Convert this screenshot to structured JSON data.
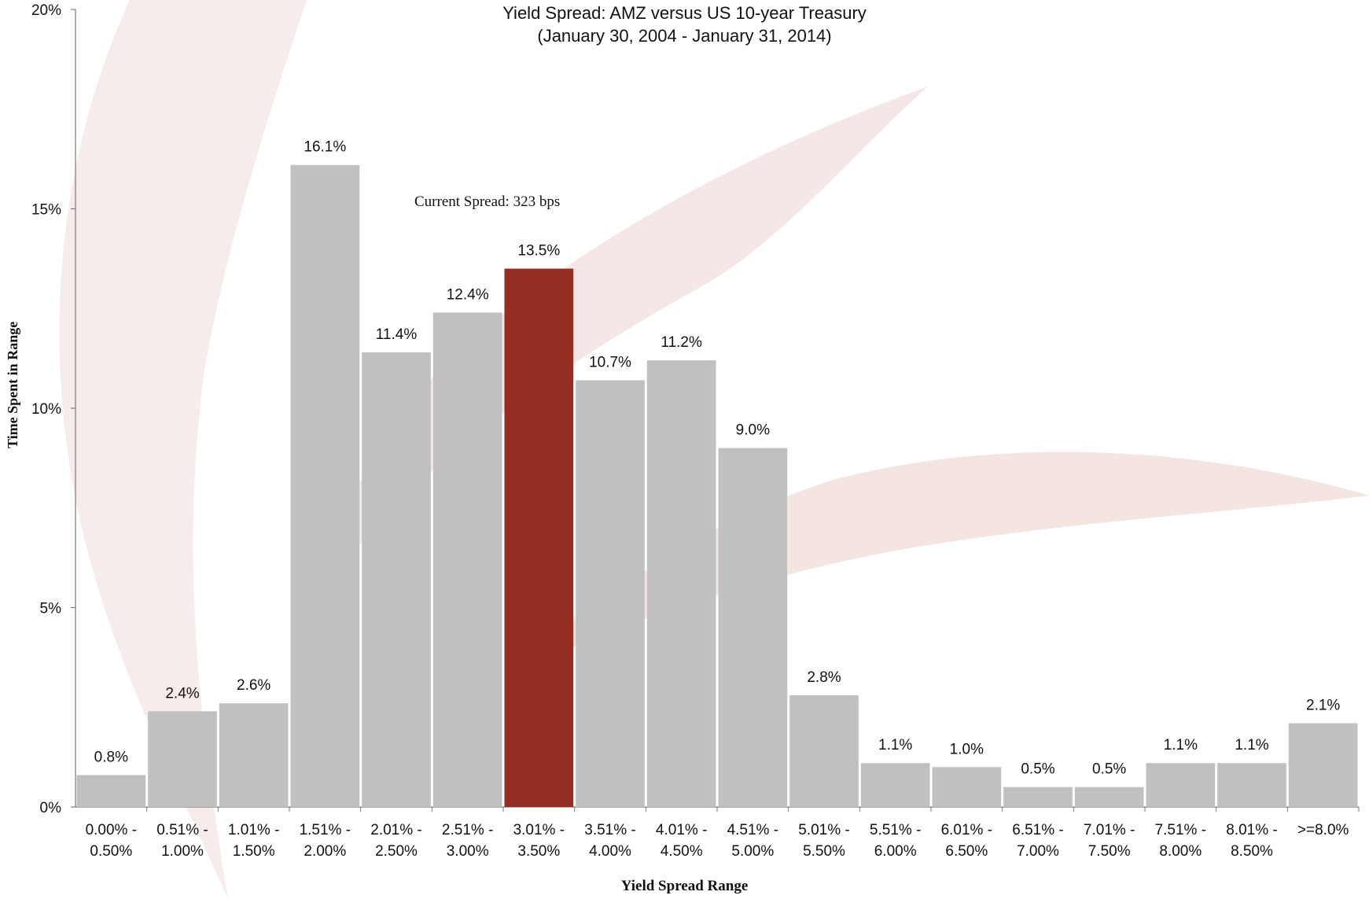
{
  "chart_data": {
    "type": "bar",
    "title": "Yield Spread: AMZ versus US 10-year Treasury",
    "subtitle": "(January 30, 2004 - January 31, 2014)",
    "xlabel": "Yield Spread Range",
    "ylabel": "Time Spent in Range",
    "annotation": "Current Spread: 323 bps",
    "ylim": [
      0,
      20
    ],
    "yticks": [
      "0%",
      "5%",
      "10%",
      "15%",
      "20%"
    ],
    "grid": false,
    "categories": [
      [
        "0.00% -",
        "0.50%"
      ],
      [
        "0.51% -",
        "1.00%"
      ],
      [
        "1.01% -",
        "1.50%"
      ],
      [
        "1.51% -",
        "2.00%"
      ],
      [
        "2.01% -",
        "2.50%"
      ],
      [
        "2.51% -",
        "3.00%"
      ],
      [
        "3.01% -",
        "3.50%"
      ],
      [
        "3.51% -",
        "4.00%"
      ],
      [
        "4.01% -",
        "4.50%"
      ],
      [
        "4.51% -",
        "5.00%"
      ],
      [
        "5.01% -",
        "5.50%"
      ],
      [
        "5.51% -",
        "6.00%"
      ],
      [
        "6.01% -",
        "6.50%"
      ],
      [
        "6.51% -",
        "7.00%"
      ],
      [
        "7.01% -",
        "7.50%"
      ],
      [
        "7.51% -",
        "8.00%"
      ],
      [
        "8.01% -",
        "8.50%"
      ],
      [
        ">=8.0%",
        ""
      ]
    ],
    "values": [
      0.8,
      2.4,
      2.6,
      16.1,
      11.4,
      12.4,
      13.5,
      10.7,
      11.2,
      9.0,
      2.8,
      1.1,
      1.0,
      0.5,
      0.5,
      1.1,
      1.1,
      2.1
    ],
    "data_labels": [
      "0.8%",
      "2.4%",
      "2.6%",
      "16.1%",
      "11.4%",
      "12.4%",
      "13.5%",
      "10.7%",
      "11.2%",
      "9.0%",
      "2.8%",
      "1.1%",
      "1.0%",
      "0.5%",
      "0.5%",
      "1.1%",
      "1.1%",
      "2.1%"
    ],
    "highlight_index": 6,
    "colors": {
      "bar": "#c0c0c0",
      "highlight": "#952e22",
      "background_mark": "#f3e3e1"
    }
  }
}
